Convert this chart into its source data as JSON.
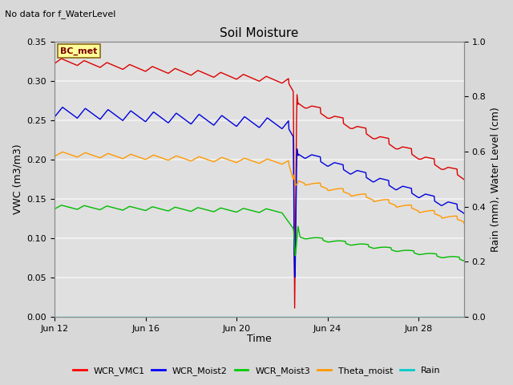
{
  "title": "Soil Moisture",
  "subtitle": "No data for f_WaterLevel",
  "ylabel_left": "VWC (m3/m3)",
  "ylabel_right": "Rain (mm), Water Level (cm)",
  "xlabel": "Time",
  "ylim_left": [
    0.0,
    0.35
  ],
  "ylim_right": [
    0.0,
    1.0
  ],
  "xtick_labels": [
    "Jun 12",
    "Jun 16",
    "Jun 20",
    "Jun 24",
    "Jun 28"
  ],
  "xtick_positions": [
    0,
    4,
    8,
    12,
    16
  ],
  "background_color": "#d8d8d8",
  "plot_bg_color": "#e0e0e0",
  "grid_color": "#f0f0f0",
  "annotation_box_text": "BC_met",
  "annotation_box_color": "#ffff99",
  "annotation_box_edge": "#8B6914",
  "legend_entries": [
    "WCR_VMC1",
    "WCR_Moist2",
    "WCR_Moist3",
    "Theta_moist",
    "Rain"
  ],
  "legend_colors": [
    "#ff0000",
    "#0000ff",
    "#00cc00",
    "#ff9900",
    "#00cccc"
  ],
  "line_colors": {
    "WCR_VMC1": "#dd0000",
    "WCR_Moist2": "#0000dd",
    "WCR_Moist3": "#00bb00",
    "Theta_moist": "#ff9900",
    "Rain": "#00cccc"
  }
}
